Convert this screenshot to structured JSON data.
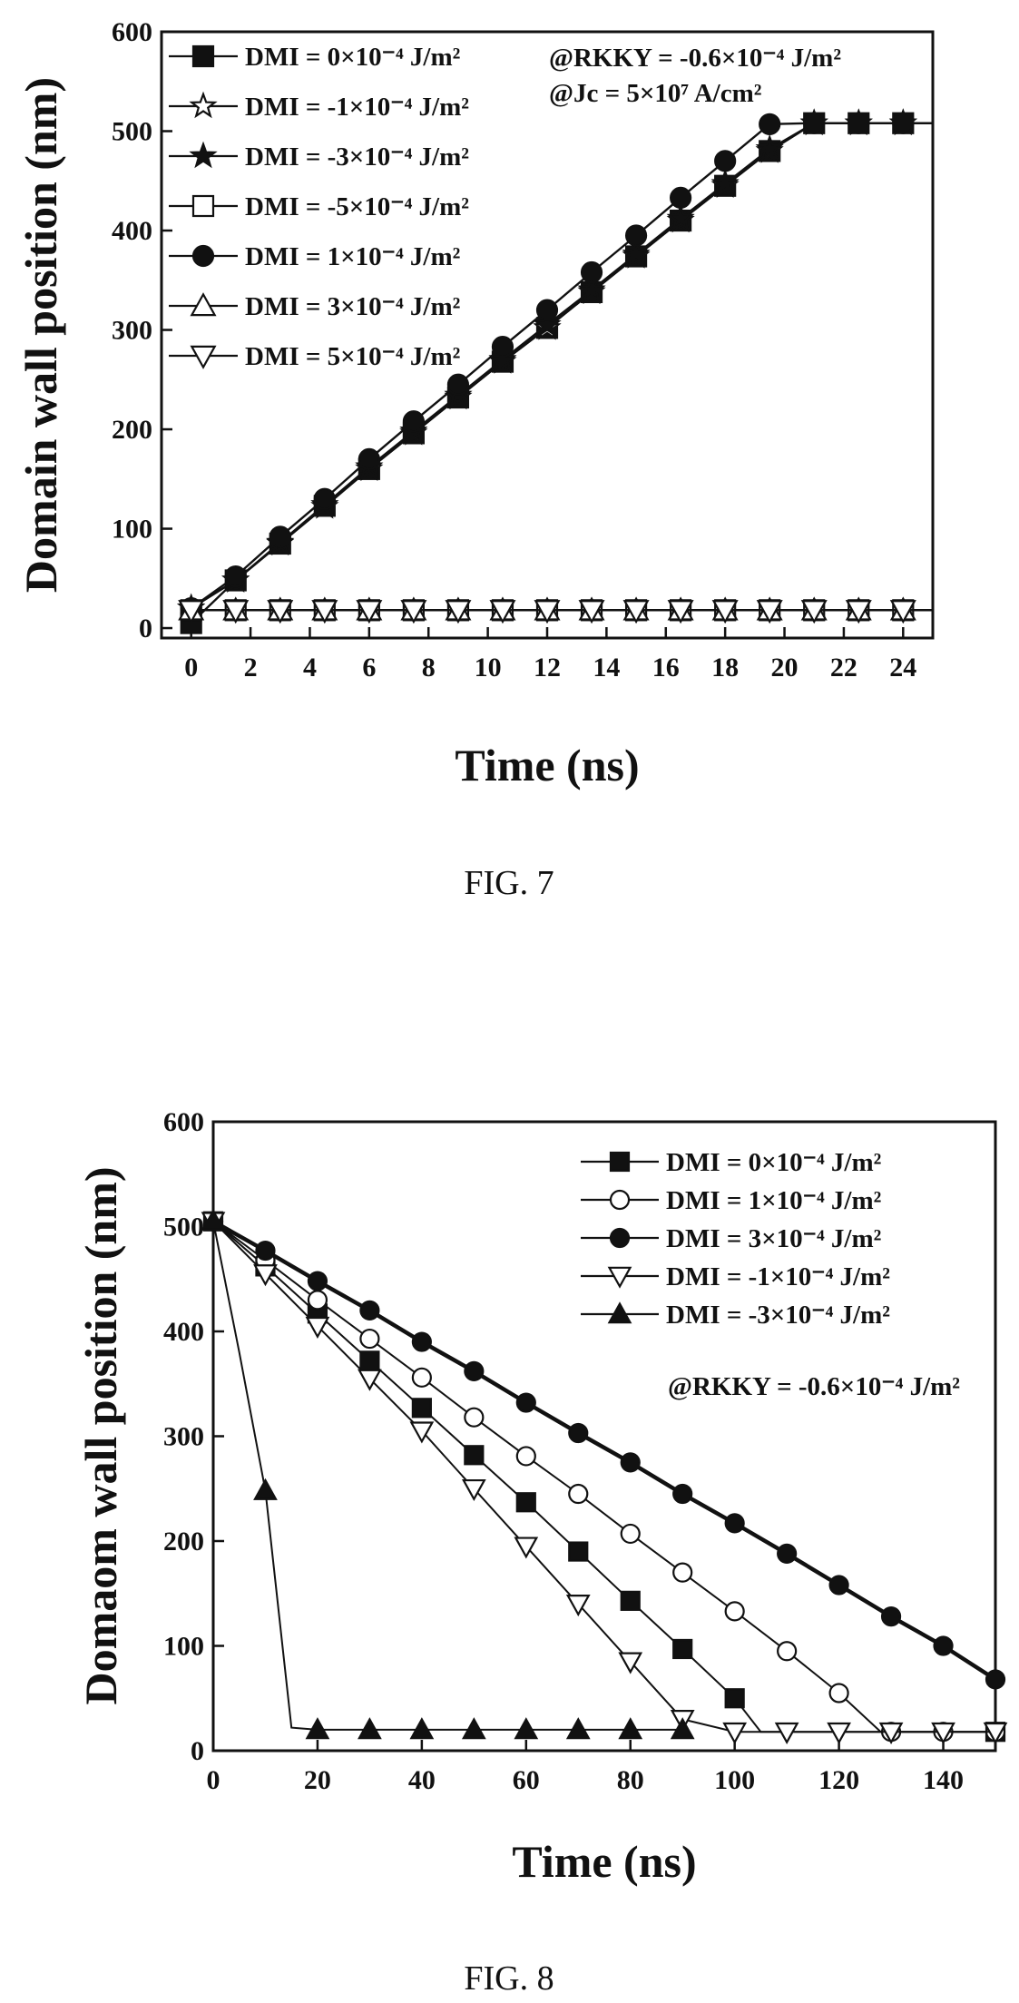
{
  "figures": [
    {
      "caption": "FIG. 7",
      "annotations": [
        "@RKKY = -0.6×10⁻⁴ J/m²",
        "@Jc = 5×10⁷ A/cm²"
      ]
    },
    {
      "caption": "FIG. 8",
      "annotations": [
        "@RKKY = -0.6×10⁻⁴ J/m²"
      ]
    }
  ],
  "chart_data": [
    {
      "type": "line",
      "title": "",
      "xlabel": "Time (ns)",
      "ylabel": "Domain wall position (nm)",
      "xlim": [
        -1,
        25
      ],
      "ylim": [
        -10,
        600
      ],
      "xticks": [
        0,
        2,
        4,
        6,
        8,
        10,
        12,
        14,
        16,
        18,
        20,
        22,
        24
      ],
      "yticks": [
        0,
        100,
        200,
        300,
        400,
        500,
        600
      ],
      "grid": false,
      "legend_position": "top-left",
      "series": [
        {
          "name": "DMI = 0×10⁻⁴ J/m²",
          "marker": "square-filled",
          "x": [
            0,
            1.5,
            3,
            4.5,
            6,
            7.5,
            9,
            10.5,
            12,
            13.5,
            15,
            16.5,
            18,
            19.5,
            21,
            22.5,
            24,
            25
          ],
          "y": [
            5,
            48,
            85,
            123,
            160,
            196,
            232,
            268,
            302,
            338,
            374,
            410,
            445,
            480,
            508,
            508,
            508,
            508
          ]
        },
        {
          "name": "DMI = -1×10⁻⁴ J/m²",
          "marker": "star-open",
          "x": [
            0,
            1.5,
            3,
            4.5,
            6,
            7.5,
            9,
            10.5,
            12,
            13.5,
            15,
            16.5,
            18,
            19.5,
            21,
            22.5,
            24,
            25
          ],
          "y": [
            20,
            48,
            85,
            122,
            160,
            196,
            232,
            268,
            302,
            338,
            374,
            410,
            445,
            480,
            508,
            508,
            508,
            508
          ]
        },
        {
          "name": "DMI = -3×10⁻⁴ J/m²",
          "marker": "star-filled",
          "x": [
            0,
            1.5,
            3,
            4.5,
            6,
            7.5,
            9,
            10.5,
            12,
            13.5,
            15,
            16.5,
            18,
            19.5,
            21,
            22.5,
            24,
            25
          ],
          "y": [
            20,
            48,
            86,
            124,
            162,
            198,
            234,
            270,
            305,
            340,
            376,
            412,
            447,
            482,
            508,
            508,
            508,
            508
          ]
        },
        {
          "name": "DMI = -5×10⁻⁴ J/m²",
          "marker": "square-open",
          "x": [
            0,
            1.5,
            3,
            4.5,
            6,
            7.5,
            9,
            10.5,
            12,
            13.5,
            15,
            16.5,
            18,
            19.5,
            21,
            22.5,
            24,
            25
          ],
          "y": [
            18,
            18,
            18,
            18,
            18,
            18,
            18,
            18,
            18,
            18,
            18,
            18,
            18,
            18,
            18,
            18,
            18,
            18
          ]
        },
        {
          "name": "DMI = 1×10⁻⁴ J/m²",
          "marker": "circle-filled",
          "x": [
            0,
            1.5,
            3,
            4.5,
            6,
            7.5,
            9,
            10.5,
            12,
            13.5,
            15,
            16.5,
            18,
            19.5,
            21,
            22.5,
            24,
            25
          ],
          "y": [
            20,
            52,
            92,
            130,
            170,
            208,
            245,
            283,
            320,
            358,
            395,
            433,
            470,
            507,
            508,
            508,
            508,
            508
          ]
        },
        {
          "name": "DMI = 3×10⁻⁴ J/m²",
          "marker": "triangle-up-open",
          "x": [
            0,
            1.5,
            3,
            4.5,
            6,
            7.5,
            9,
            10.5,
            12,
            13.5,
            15,
            16.5,
            18,
            19.5,
            21,
            22.5,
            24,
            25
          ],
          "y": [
            18,
            18,
            18,
            18,
            18,
            18,
            18,
            18,
            18,
            18,
            18,
            18,
            18,
            18,
            18,
            18,
            18,
            18
          ]
        },
        {
          "name": "DMI = 5×10⁻⁴ J/m²",
          "marker": "triangle-down-open",
          "x": [
            0,
            1.5,
            3,
            4.5,
            6,
            7.5,
            9,
            10.5,
            12,
            13.5,
            15,
            16.5,
            18,
            19.5,
            21,
            22.5,
            24,
            25
          ],
          "y": [
            18,
            18,
            18,
            18,
            18,
            18,
            18,
            18,
            18,
            18,
            18,
            18,
            18,
            18,
            18,
            18,
            18,
            18
          ]
        }
      ]
    },
    {
      "type": "line",
      "title": "",
      "xlabel": "Time (ns)",
      "ylabel": "Domaom wall position (nm)",
      "xlim": [
        0,
        150
      ],
      "ylim": [
        0,
        600
      ],
      "xticks": [
        0,
        20,
        40,
        60,
        80,
        100,
        120,
        140
      ],
      "yticks": [
        0,
        100,
        200,
        300,
        400,
        500,
        600
      ],
      "grid": false,
      "legend_position": "top-right",
      "series": [
        {
          "name": "DMI = 0×10⁻⁴ J/m²",
          "marker": "square-filled",
          "x": [
            0,
            10,
            20,
            30,
            40,
            50,
            60,
            70,
            80,
            90,
            100,
            105,
            150
          ],
          "y": [
            505,
            462,
            417,
            372,
            327,
            282,
            237,
            190,
            143,
            97,
            50,
            18,
            18
          ]
        },
        {
          "name": "DMI = 1×10⁻⁴ J/m²",
          "marker": "circle-open",
          "x": [
            0,
            10,
            20,
            30,
            40,
            50,
            60,
            70,
            80,
            90,
            100,
            110,
            120,
            128,
            130,
            140,
            150
          ],
          "y": [
            505,
            468,
            430,
            393,
            356,
            318,
            281,
            245,
            207,
            170,
            133,
            95,
            55,
            18,
            18,
            18,
            18
          ]
        },
        {
          "name": "DMI = 3×10⁻⁴ J/m²",
          "marker": "circle-filled",
          "x": [
            0,
            10,
            20,
            30,
            40,
            50,
            60,
            70,
            80,
            90,
            100,
            110,
            120,
            130,
            140,
            150
          ],
          "y": [
            505,
            477,
            448,
            420,
            390,
            362,
            332,
            303,
            275,
            245,
            217,
            188,
            158,
            128,
            100,
            68
          ]
        },
        {
          "name": "DMI = -1×10⁻⁴ J/m²",
          "marker": "triangle-down-open",
          "x": [
            0,
            10,
            20,
            30,
            40,
            50,
            60,
            70,
            80,
            90,
            100,
            110,
            120,
            130,
            140,
            150
          ],
          "y": [
            505,
            455,
            405,
            355,
            305,
            250,
            195,
            140,
            85,
            30,
            18,
            18,
            18,
            18,
            18,
            18
          ]
        },
        {
          "name": "DMI = -3×10⁻⁴ J/m²",
          "marker": "triangle-up-filled",
          "x": [
            0,
            5,
            10,
            15,
            20,
            30,
            40,
            50,
            60,
            70,
            80,
            90
          ],
          "y": [
            505,
            380,
            248,
            22,
            20,
            20,
            20,
            20,
            20,
            20,
            20,
            20
          ]
        }
      ]
    }
  ]
}
